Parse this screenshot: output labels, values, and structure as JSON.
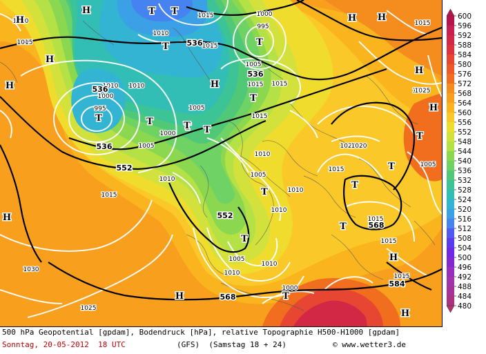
{
  "caption": {
    "line1": "500 hPa Geopotential [gpdam], Bodendruck [hPa], relative Topographie H500-H1000 [gpdam]",
    "date_text": "Sonntag, 20-05-2012  18 UTC",
    "model_text": "(GFS)  (Samstag 18 + 24)",
    "copyright_text": "© www.wetter3.de"
  },
  "legend": {
    "values": [
      "600",
      "596",
      "592",
      "588",
      "584",
      "580",
      "576",
      "572",
      "568",
      "564",
      "560",
      "556",
      "552",
      "548",
      "544",
      "540",
      "536",
      "532",
      "528",
      "524",
      "520",
      "516",
      "512",
      "508",
      "504",
      "500",
      "496",
      "492",
      "488",
      "484",
      "480"
    ],
    "colors": [
      "#b4144b",
      "#c81e50",
      "#d22846",
      "#dc323c",
      "#e64632",
      "#ec5a28",
      "#f06e1e",
      "#f58c1e",
      "#f8a01e",
      "#fab41e",
      "#fac828",
      "#f0dc2d",
      "#d2e13c",
      "#b4e146",
      "#8cd750",
      "#6ed264",
      "#50c878",
      "#3cc396",
      "#32beb4",
      "#32b4d2",
      "#3ca0e6",
      "#4682f0",
      "#505af0",
      "#5a3cf0",
      "#6e28e6",
      "#8228d2",
      "#962ebe",
      "#a032aa",
      "#a53296",
      "#aa3282",
      "#b4326e"
    ]
  },
  "map": {
    "pressure_systems": [
      {
        "label": "T",
        "name": "T-low"
      },
      {
        "label": "T",
        "name": "T-low"
      },
      {
        "label": "T",
        "name": "T-low"
      },
      {
        "label": "T",
        "name": "T-low"
      },
      {
        "label": "T",
        "name": "T-low"
      },
      {
        "label": "T",
        "name": "T-low"
      },
      {
        "label": "T",
        "name": "T-low"
      },
      {
        "label": "T",
        "name": "T-low"
      },
      {
        "label": "T",
        "name": "T-low"
      },
      {
        "label": "T",
        "name": "T-low"
      },
      {
        "label": "T",
        "name": "T-low"
      },
      {
        "label": "T",
        "name": "T-low"
      },
      {
        "label": "T",
        "name": "T-low"
      },
      {
        "label": "T",
        "name": "T-low"
      },
      {
        "label": "T",
        "name": "T-low"
      },
      {
        "label": "T",
        "name": "T-low"
      },
      {
        "label": "T",
        "name": "T-low"
      },
      {
        "label": "H",
        "name": "H-high"
      },
      {
        "label": "H",
        "name": "H-high"
      },
      {
        "label": "H",
        "name": "H-high"
      },
      {
        "label": "H",
        "name": "H-high"
      },
      {
        "label": "H",
        "name": "H-high"
      },
      {
        "label": "H",
        "name": "H-high"
      },
      {
        "label": "H",
        "name": "H-high"
      },
      {
        "label": "H",
        "name": "H-high"
      },
      {
        "label": "H",
        "name": "H-high"
      },
      {
        "label": "H",
        "name": "H-high"
      },
      {
        "label": "H",
        "name": "H-high"
      },
      {
        "label": "H",
        "name": "H-high"
      },
      {
        "label": "H",
        "name": "H-high"
      },
      {
        "label": "H",
        "name": "H-high"
      }
    ],
    "geopotential_labels": [
      "536",
      "536",
      "536",
      "536",
      "552",
      "552",
      "568",
      "568",
      "584"
    ],
    "isobar_labels": [
      "1010",
      "1015",
      "1015",
      "1000",
      "995",
      "1010",
      "1015",
      "1005",
      "1015",
      "1010",
      "1015",
      "1010",
      "995",
      "1000",
      "1005",
      "1000",
      "1005",
      "1010",
      "1015",
      "1010",
      "1015",
      "1005",
      "1010",
      "1015",
      "1010",
      "1005",
      "1010",
      "1015",
      "1020",
      "1025",
      "1030",
      "1015",
      "1015",
      "1015",
      "1005",
      "1010",
      "1000",
      "1015",
      "1025",
      "1020"
    ]
  }
}
